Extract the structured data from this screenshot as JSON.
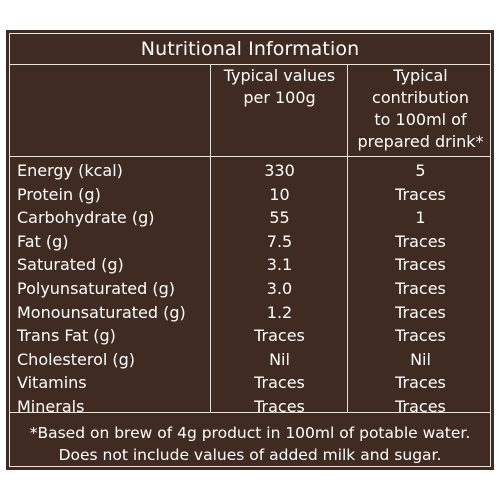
{
  "title": "Nutritional Information",
  "columns": {
    "per_100g": [
      "Typical values",
      "per 100g"
    ],
    "per_100ml": [
      "Typical",
      "contribution",
      "to 100ml of",
      "prepared drink*"
    ]
  },
  "rows": [
    {
      "name": "Energy (kcal)",
      "per_100g": "330",
      "per_100ml": "5"
    },
    {
      "name": "Protein (g)",
      "per_100g": "10",
      "per_100ml": "Traces"
    },
    {
      "name": "Carbohydrate (g)",
      "per_100g": "55",
      "per_100ml": "1"
    },
    {
      "name": "Fat (g)",
      "per_100g": "7.5",
      "per_100ml": "Traces"
    },
    {
      "name": "Saturated (g)",
      "per_100g": "3.1",
      "per_100ml": "Traces"
    },
    {
      "name": "Polyunsaturated (g)",
      "per_100g": "3.0",
      "per_100ml": "Traces"
    },
    {
      "name": "Monounsaturated (g)",
      "per_100g": "1.2",
      "per_100ml": "Traces"
    },
    {
      "name": "Trans Fat (g)",
      "per_100g": "Traces",
      "per_100ml": "Traces"
    },
    {
      "name": "Cholesterol (g)",
      "per_100g": "Nil",
      "per_100ml": "Nil"
    },
    {
      "name": "Vitamins",
      "per_100g": "Traces",
      "per_100ml": "Traces"
    },
    {
      "name": "Minerals",
      "per_100g": "Traces",
      "per_100ml": "Traces"
    }
  ],
  "footnote": [
    "*Based on brew of 4g product in 100ml of potable water.",
    "Does not include values of added milk and sugar."
  ],
  "colors": {
    "background": "#3f2b21",
    "text": "#ffffff",
    "rule": "#e8e2dc"
  }
}
